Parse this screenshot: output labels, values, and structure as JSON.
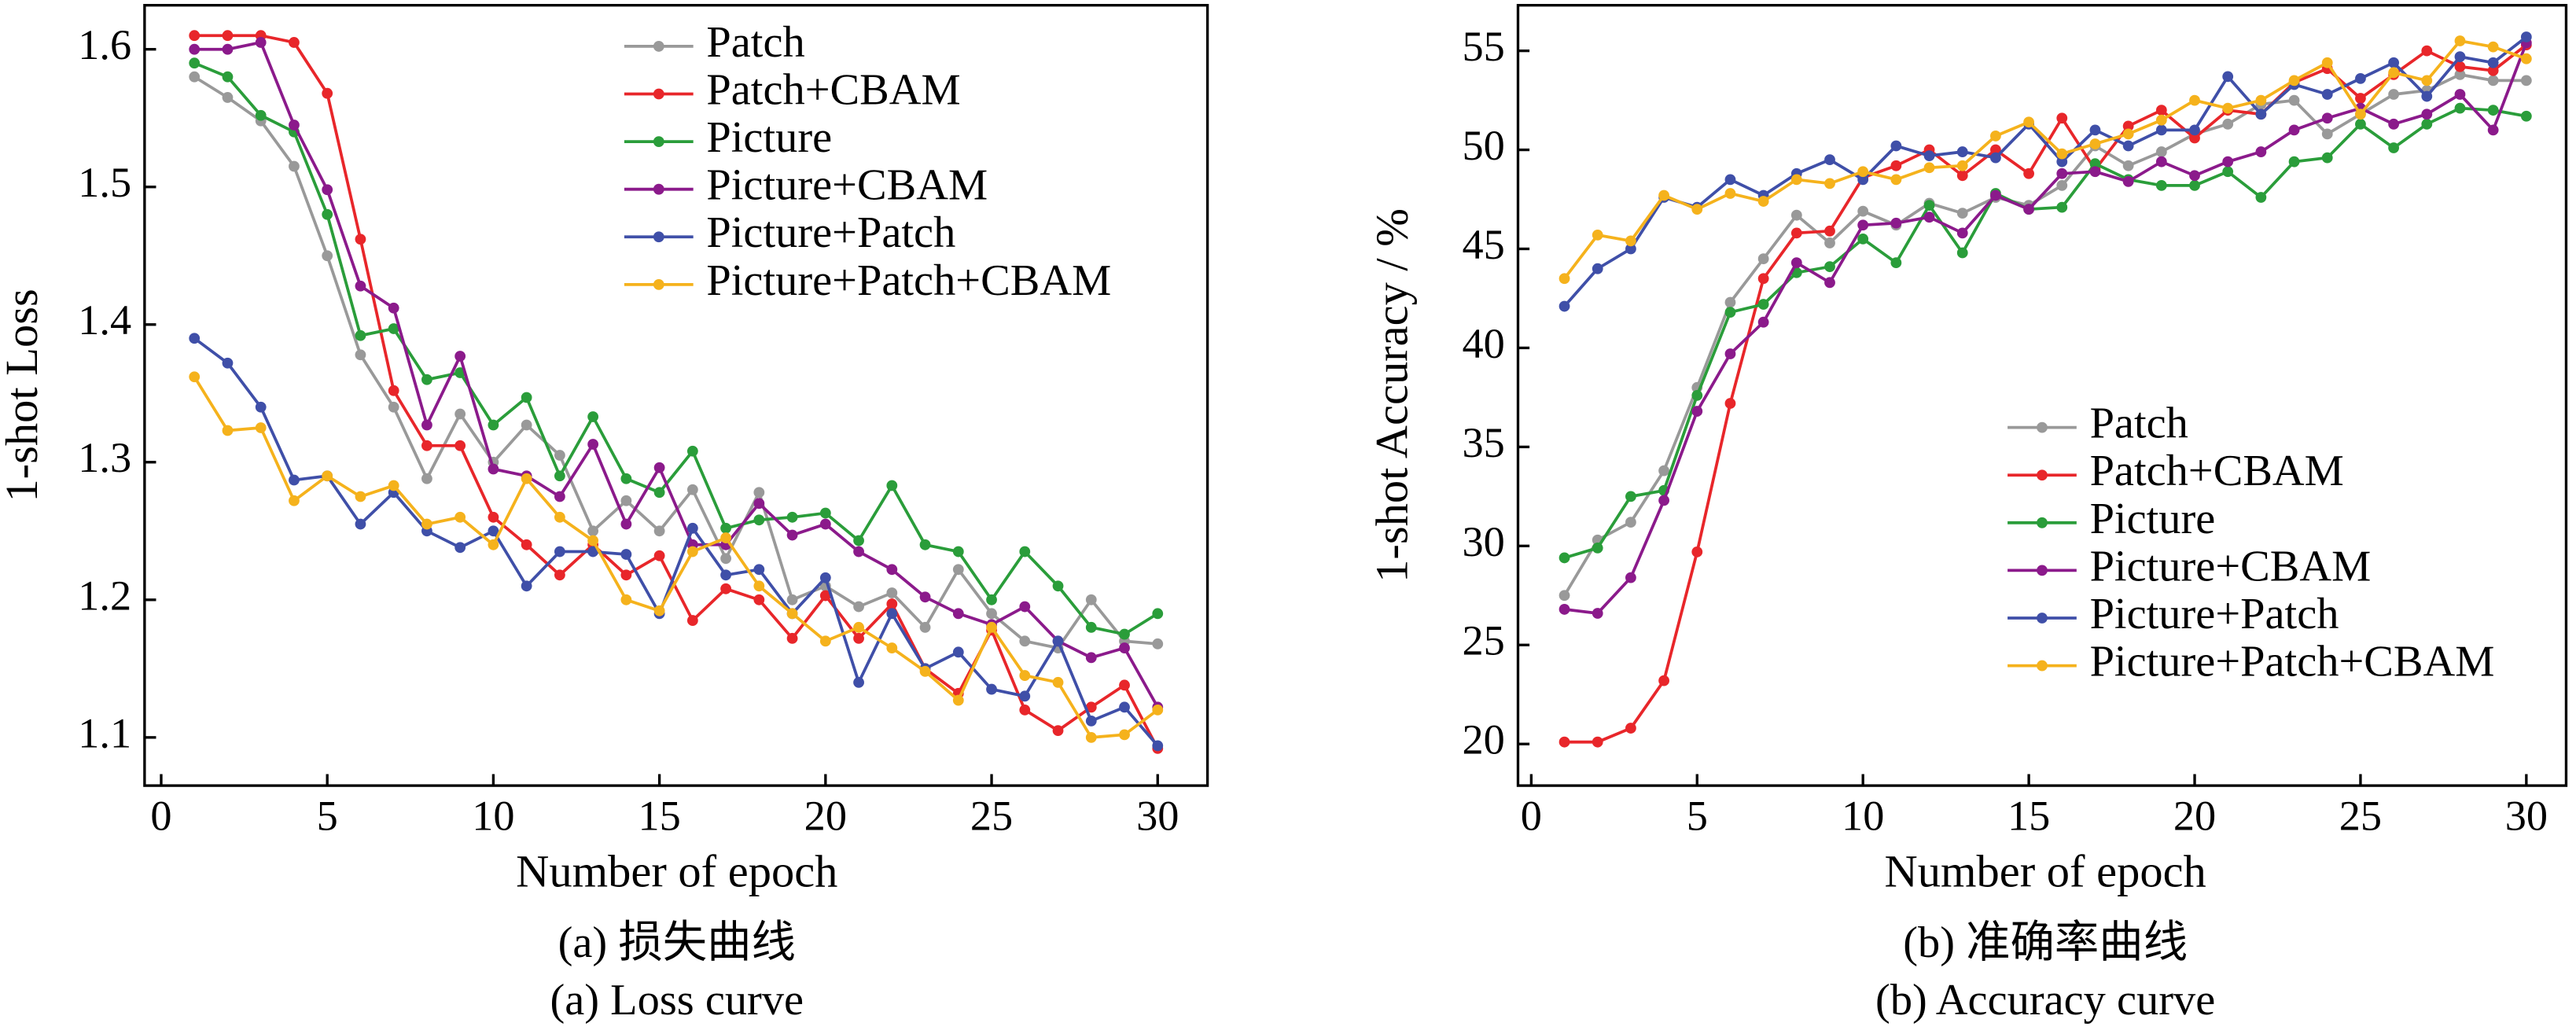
{
  "chart_data": [
    {
      "type": "line",
      "xlabel": "Number of epoch",
      "ylabel": "1-shot Loss",
      "caption": "(a) 损失曲线",
      "caption_en": "(a) Loss curve",
      "x": [
        1,
        2,
        3,
        4,
        5,
        6,
        7,
        8,
        9,
        10,
        11,
        12,
        13,
        14,
        15,
        16,
        17,
        18,
        19,
        20,
        21,
        22,
        23,
        24,
        25,
        26,
        27,
        28,
        29,
        30
      ],
      "xlim": [
        -0.5,
        31.5
      ],
      "xticks": [
        0,
        5,
        10,
        15,
        20,
        25,
        30
      ],
      "ylim": [
        1.065,
        1.632
      ],
      "yticks": [
        1.1,
        1.2,
        1.3,
        1.4,
        1.5,
        1.6
      ],
      "legend": "upper right",
      "series": [
        {
          "name": "Patch",
          "color": "#999999",
          "values": [
            1.58,
            1.565,
            1.548,
            1.515,
            1.45,
            1.378,
            1.34,
            1.288,
            1.335,
            1.3,
            1.327,
            1.305,
            1.25,
            1.272,
            1.25,
            1.28,
            1.23,
            1.278,
            1.2,
            1.21,
            1.195,
            1.205,
            1.18,
            1.222,
            1.19,
            1.17,
            1.165,
            1.2,
            1.17,
            1.168
          ]
        },
        {
          "name": "Patch+CBAM",
          "color": "#e8262a",
          "values": [
            1.61,
            1.61,
            1.61,
            1.605,
            1.568,
            1.462,
            1.352,
            1.312,
            1.312,
            1.26,
            1.24,
            1.218,
            1.24,
            1.218,
            1.232,
            1.185,
            1.208,
            1.2,
            1.172,
            1.203,
            1.172,
            1.197,
            1.15,
            1.132,
            1.178,
            1.12,
            1.105,
            1.122,
            1.138,
            1.092
          ]
        },
        {
          "name": "Picture",
          "color": "#2a9d3a",
          "values": [
            1.59,
            1.58,
            1.552,
            1.54,
            1.48,
            1.392,
            1.397,
            1.36,
            1.365,
            1.327,
            1.347,
            1.29,
            1.333,
            1.288,
            1.278,
            1.308,
            1.252,
            1.258,
            1.26,
            1.263,
            1.243,
            1.283,
            1.24,
            1.235,
            1.2,
            1.235,
            1.21,
            1.18,
            1.175,
            1.19
          ]
        },
        {
          "name": "Picture+CBAM",
          "color": "#8b1a8b",
          "values": [
            1.6,
            1.6,
            1.605,
            1.545,
            1.498,
            1.428,
            1.412,
            1.327,
            1.377,
            1.295,
            1.29,
            1.275,
            1.313,
            1.255,
            1.296,
            1.24,
            1.24,
            1.27,
            1.247,
            1.255,
            1.235,
            1.222,
            1.202,
            1.19,
            1.182,
            1.195,
            1.17,
            1.158,
            1.165,
            1.122
          ]
        },
        {
          "name": "Picture+Patch",
          "color": "#3f4fa8",
          "values": [
            1.39,
            1.372,
            1.34,
            1.287,
            1.29,
            1.255,
            1.278,
            1.25,
            1.238,
            1.25,
            1.21,
            1.235,
            1.235,
            1.233,
            1.19,
            1.252,
            1.218,
            1.222,
            1.19,
            1.216,
            1.14,
            1.19,
            1.15,
            1.162,
            1.135,
            1.13,
            1.17,
            1.112,
            1.122,
            1.094
          ]
        },
        {
          "name": "Picture+Patch+CBAM",
          "color": "#f5b21c",
          "values": [
            1.362,
            1.323,
            1.325,
            1.272,
            1.29,
            1.275,
            1.283,
            1.255,
            1.26,
            1.24,
            1.288,
            1.26,
            1.243,
            1.2,
            1.192,
            1.235,
            1.245,
            1.21,
            1.19,
            1.17,
            1.18,
            1.165,
            1.148,
            1.127,
            1.18,
            1.145,
            1.14,
            1.1,
            1.102,
            1.12
          ]
        }
      ]
    },
    {
      "type": "line",
      "xlabel": "Number of epoch",
      "ylabel": "1-shot Accuracy / %",
      "caption": "(b) 准确率曲线",
      "caption_en": "(b) Accuracy curve",
      "x": [
        1,
        2,
        3,
        4,
        5,
        6,
        7,
        8,
        9,
        10,
        11,
        12,
        13,
        14,
        15,
        16,
        17,
        18,
        19,
        20,
        21,
        22,
        23,
        24,
        25,
        26,
        27,
        28,
        29,
        30
      ],
      "xlim": [
        -0.4,
        31.2
      ],
      "xticks": [
        0,
        5,
        10,
        15,
        20,
        25,
        30
      ],
      "ylim": [
        17.9,
        57.3
      ],
      "yticks": [
        20,
        25,
        30,
        35,
        40,
        45,
        50,
        55
      ],
      "legend": "lower right",
      "series": [
        {
          "name": "Patch",
          "color": "#999999",
          "values": [
            27.5,
            30.3,
            31.2,
            33.8,
            38,
            42.3,
            44.5,
            46.7,
            45.3,
            46.9,
            46.2,
            47.3,
            46.8,
            47.6,
            47.2,
            48.2,
            50.2,
            49.2,
            49.9,
            50.8,
            51.3,
            52.3,
            52.5,
            50.8,
            51.8,
            52.8,
            53,
            53.8,
            53.5,
            53.5
          ]
        },
        {
          "name": "Patch+CBAM",
          "color": "#e8262a",
          "values": [
            20.1,
            20.1,
            20.8,
            23.2,
            29.7,
            37.2,
            43.5,
            45.8,
            45.9,
            48.6,
            49.2,
            50,
            48.7,
            50,
            48.8,
            51.6,
            49,
            51.2,
            52,
            50.6,
            52,
            51.8,
            53.4,
            54.1,
            52.6,
            53.8,
            55,
            54.2,
            54,
            55.3
          ]
        },
        {
          "name": "Picture",
          "color": "#2a9d3a",
          "values": [
            29.4,
            29.9,
            32.5,
            32.8,
            37.6,
            41.8,
            42.2,
            43.8,
            44.1,
            45.5,
            44.3,
            47.2,
            44.8,
            47.8,
            47,
            47.1,
            49.3,
            48.5,
            48.2,
            48.2,
            48.9,
            47.6,
            49.4,
            49.6,
            51.3,
            50.1,
            51.3,
            52.1,
            52,
            51.7
          ]
        },
        {
          "name": "Picture+CBAM",
          "color": "#8b1a8b",
          "values": [
            26.8,
            26.6,
            28.4,
            32.3,
            36.8,
            39.7,
            41.3,
            44.3,
            43.3,
            46.2,
            46.3,
            46.6,
            45.8,
            47.7,
            47,
            48.8,
            48.9,
            48.4,
            49.4,
            48.7,
            49.4,
            49.9,
            51,
            51.6,
            52.1,
            51.3,
            51.8,
            52.8,
            51,
            55.4
          ]
        },
        {
          "name": "Picture+Patch",
          "color": "#3f4fa8",
          "values": [
            42.1,
            44,
            45,
            47.6,
            47.1,
            48.5,
            47.7,
            48.8,
            49.5,
            48.5,
            50.2,
            49.7,
            49.9,
            49.6,
            51.3,
            49.4,
            51,
            50.2,
            51,
            51,
            53.7,
            51.8,
            53.3,
            52.8,
            53.6,
            54.4,
            52.7,
            54.7,
            54.4,
            55.7
          ]
        },
        {
          "name": "Picture+Patch+CBAM",
          "color": "#f5b21c",
          "values": [
            43.5,
            45.7,
            45.4,
            47.7,
            47,
            47.8,
            47.4,
            48.5,
            48.3,
            48.9,
            48.5,
            49.1,
            49.2,
            50.7,
            51.4,
            49.8,
            50.3,
            50.8,
            51.5,
            52.5,
            52.1,
            52.5,
            53.5,
            54.4,
            51.8,
            53.9,
            53.5,
            55.5,
            55.2,
            54.6
          ]
        }
      ]
    }
  ]
}
